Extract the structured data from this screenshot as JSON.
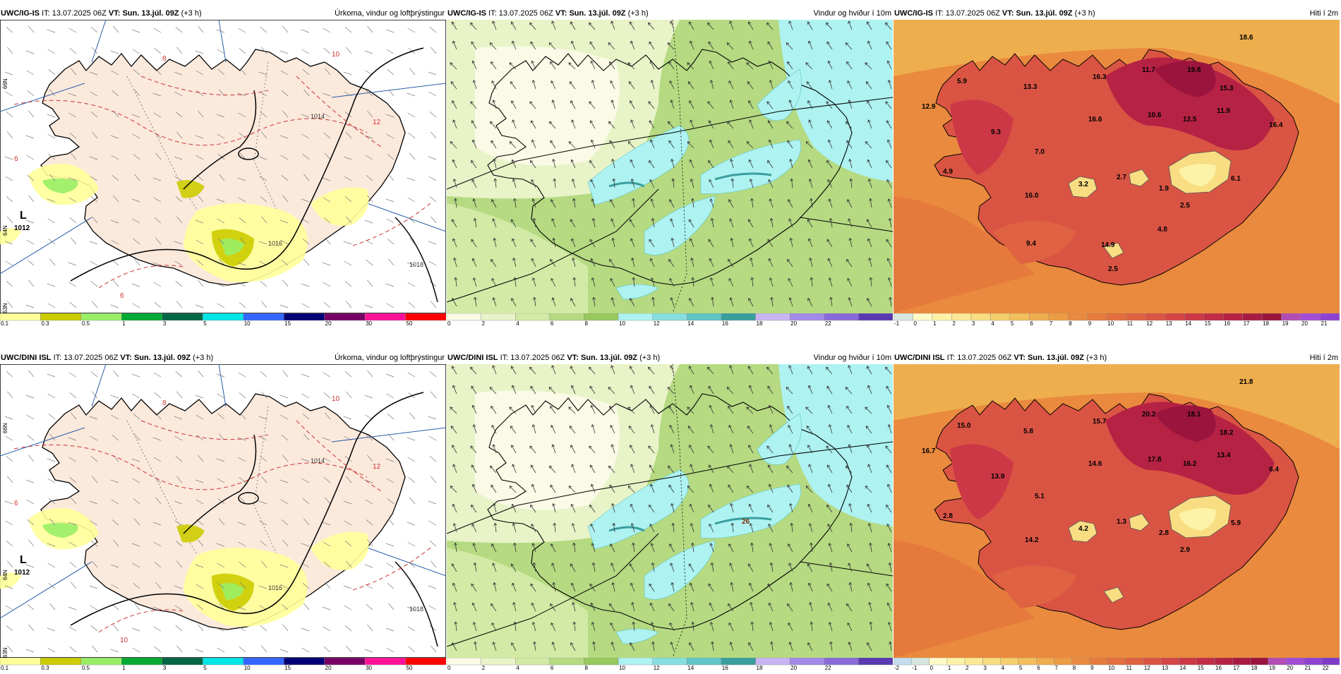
{
  "rows": [
    {
      "model": "UWC/IG-IS",
      "it_label": "IT:",
      "it_value": "13.07.2025 06Z",
      "vt_label": "VT:",
      "vt_value": "Sun. 13.júl. 09Z",
      "lead": "(+3 h)",
      "panels": [
        {
          "kind": "precip",
          "title": "Úrkoma, vindur og loftþrýstingur",
          "low_marker": "L",
          "low_value": "1012",
          "isobar_labels": [
            "1014",
            "1016",
            "1018"
          ],
          "temp_labels": [
            "6",
            "8",
            "10",
            "12",
            "6"
          ],
          "edge_labels": [
            "66N",
            "64N",
            "63N"
          ],
          "colorbar": {
            "labels": [
              "0.1",
              "0.3",
              "0.5",
              "1",
              "3",
              "5",
              "10",
              "15",
              "20",
              "30",
              "50"
            ],
            "colors": [
              "#ffff99",
              "#cccc00",
              "#99ee66",
              "#00aa33",
              "#006644",
              "#00e5e5",
              "#3366ff",
              "#000077",
              "#770066",
              "#ff1199",
              "#ff0000"
            ]
          }
        },
        {
          "kind": "wind",
          "title": "Vindur og hviður í 10m",
          "colorbar": {
            "labels": [
              "0",
              "2",
              "4",
              "6",
              "8",
              "10",
              "12",
              "14",
              "16",
              "18",
              "20",
              "22"
            ],
            "colors": [
              "#fafae6",
              "#e8f3c8",
              "#d3eaa6",
              "#b5da82",
              "#98c95e",
              "#aef2f2",
              "#87dede",
              "#5fc5c5",
              "#3a9e9e",
              "#c8b5f2",
              "#a48ae8",
              "#8a6ad8",
              "#5a3ab2"
            ]
          }
        },
        {
          "kind": "temp",
          "title": "Hiti í 2m",
          "values": [
            {
              "label": "18.6"
            },
            {
              "label": "5.9"
            },
            {
              "label": "13.3"
            },
            {
              "label": "16.3"
            },
            {
              "label": "11.7"
            },
            {
              "label": "19.8"
            },
            {
              "label": "15.3"
            },
            {
              "label": "12.9"
            },
            {
              "label": "11.9"
            },
            {
              "label": "9.3"
            },
            {
              "label": "16.6"
            },
            {
              "label": "10.6"
            },
            {
              "label": "12.5"
            },
            {
              "label": "16.4"
            },
            {
              "label": "7.0"
            },
            {
              "label": "4.9"
            },
            {
              "label": "3.2"
            },
            {
              "label": "2.7"
            },
            {
              "label": "6.1"
            },
            {
              "label": "16.0"
            },
            {
              "label": "1.9"
            },
            {
              "label": "2.5"
            },
            {
              "label": "4.8"
            },
            {
              "label": "9.4"
            },
            {
              "label": "14.9"
            },
            {
              "label": "2.5"
            }
          ],
          "colorbar": {
            "labels": [
              "-1",
              "0",
              "1",
              "2",
              "3",
              "4",
              "5",
              "6",
              "7",
              "8",
              "9",
              "10",
              "11",
              "12",
              "13",
              "14",
              "15",
              "16",
              "17",
              "18",
              "19",
              "20",
              "21"
            ],
            "colors": [
              "#d7e7e0",
              "#fffbc8",
              "#fdf3a8",
              "#fbe996",
              "#f8dd82",
              "#f5cf6e",
              "#f2bf5c",
              "#efae4e",
              "#ec9c44",
              "#e98a3e",
              "#e67a3c",
              "#e36e3e",
              "#df6242",
              "#da5444",
              "#d44646",
              "#cc3846",
              "#c22c46",
              "#b62244",
              "#a81a42",
              "#9a143e",
              "#b34cb5",
              "#a24cd6",
              "#8e42d2"
            ]
          }
        }
      ]
    },
    {
      "model": "UWC/DINI ISL",
      "it_label": "IT:",
      "it_value": "13.07.2025 06Z",
      "vt_label": "VT:",
      "vt_value": "Sun. 13.júl. 09Z",
      "lead": "(+3 h)",
      "panels": [
        {
          "kind": "precip",
          "title": "Úrkoma, vindur og loftþrýstingur",
          "low_marker": "L",
          "low_value": "1012",
          "isobar_labels": [
            "1014",
            "1016",
            "1018"
          ],
          "temp_labels": [
            "6",
            "8",
            "10",
            "12",
            "10"
          ],
          "edge_labels": [
            "66N",
            "64N",
            "63N"
          ],
          "colorbar": {
            "labels": [
              "0.1",
              "0.3",
              "0.5",
              "1",
              "3",
              "5",
              "10",
              "15",
              "20",
              "30",
              "50"
            ],
            "colors": [
              "#ffff99",
              "#cccc00",
              "#99ee66",
              "#00aa33",
              "#006644",
              "#00e5e5",
              "#3366ff",
              "#000077",
              "#770066",
              "#ff1199",
              "#ff0000"
            ]
          }
        },
        {
          "kind": "wind",
          "title": "Vindur og hviður í 10m",
          "gust_label": "26",
          "colorbar": {
            "labels": [
              "0",
              "2",
              "4",
              "6",
              "8",
              "10",
              "12",
              "14",
              "16",
              "18",
              "20",
              "22"
            ],
            "colors": [
              "#fafae6",
              "#e8f3c8",
              "#d3eaa6",
              "#b5da82",
              "#98c95e",
              "#aef2f2",
              "#87dede",
              "#5fc5c5",
              "#3a9e9e",
              "#c8b5f2",
              "#a48ae8",
              "#8a6ad8",
              "#5a3ab2"
            ]
          }
        },
        {
          "kind": "temp",
          "title": "Hiti í 2m",
          "values": [
            {
              "label": "21.8"
            },
            {
              "label": "15.0"
            },
            {
              "label": "5.8"
            },
            {
              "label": "15.7"
            },
            {
              "label": "20.2"
            },
            {
              "label": "18.1"
            },
            {
              "label": "18.2"
            },
            {
              "label": "16.7"
            },
            {
              "label": "13.4"
            },
            {
              "label": "13.9"
            },
            {
              "label": "14.6"
            },
            {
              "label": "17.8"
            },
            {
              "label": "16.2"
            },
            {
              "label": "6.4"
            },
            {
              "label": "5.1"
            },
            {
              "label": "2.8"
            },
            {
              "label": "4.2"
            },
            {
              "label": "1.3"
            },
            {
              "label": "5.9"
            },
            {
              "label": "14.2"
            },
            {
              "label": "2.8"
            },
            {
              "label": "2.9"
            }
          ],
          "colorbar": {
            "labels": [
              "-2",
              "-1",
              "0",
              "1",
              "2",
              "3",
              "4",
              "5",
              "6",
              "7",
              "8",
              "9",
              "10",
              "11",
              "12",
              "13",
              "14",
              "15",
              "16",
              "17",
              "18",
              "19",
              "20",
              "21",
              "22"
            ],
            "colors": [
              "#c6dcef",
              "#d7e7e0",
              "#fffbc8",
              "#fdf3a8",
              "#fbe996",
              "#f8dd82",
              "#f5cf6e",
              "#f2bf5c",
              "#efae4e",
              "#ec9c44",
              "#e98a3e",
              "#e67a3c",
              "#e36e3e",
              "#df6242",
              "#da5444",
              "#d44646",
              "#cc3846",
              "#c22c46",
              "#b62244",
              "#a81a42",
              "#9a143e",
              "#b34cb5",
              "#a24cd6",
              "#8e42d2",
              "#7e3ac8"
            ]
          }
        }
      ]
    }
  ]
}
